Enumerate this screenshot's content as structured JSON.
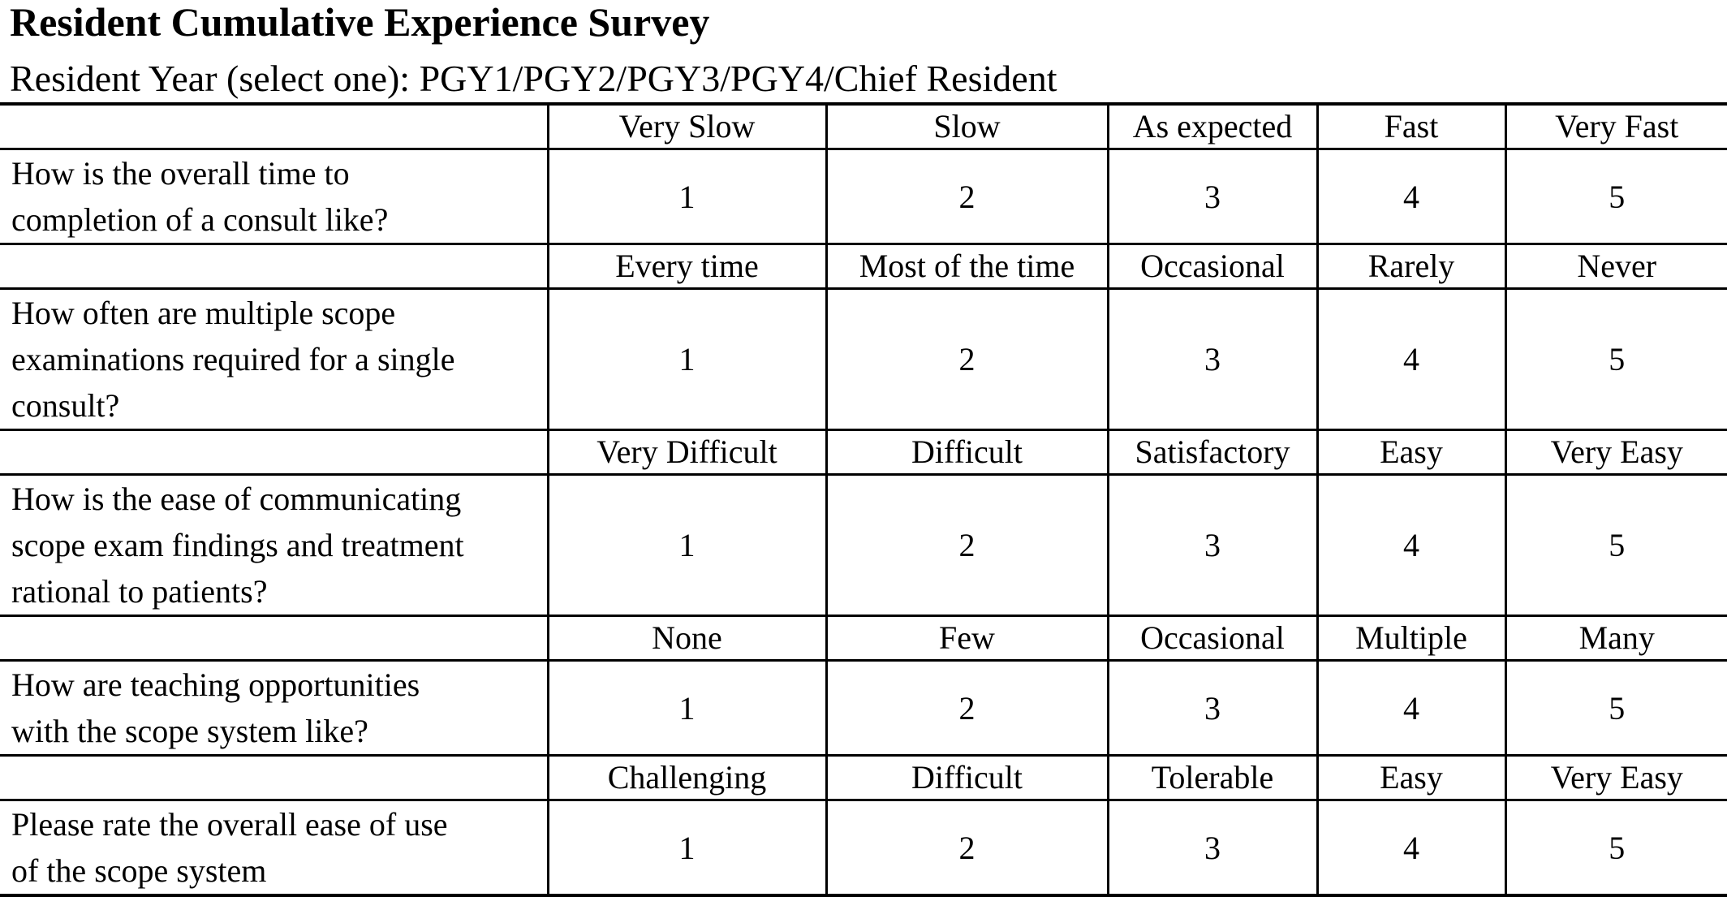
{
  "title": "Resident Cumulative Experience Survey",
  "subtitle": "Resident Year (select one): PGY1/PGY2/PGY3/PGY4/Chief Resident",
  "questions": [
    {
      "lines": [
        "How is the overall time to",
        "completion of a consult like?"
      ],
      "scale": [
        "Very Slow",
        "Slow",
        "As expected",
        "Fast",
        "Very Fast"
      ],
      "ratings": [
        "1",
        "2",
        "3",
        "4",
        "5"
      ]
    },
    {
      "lines": [
        "How often are multiple scope",
        "examinations required for a single",
        "consult?"
      ],
      "scale": [
        "Every time",
        "Most of the time",
        "Occasional",
        "Rarely",
        "Never"
      ],
      "ratings": [
        "1",
        "2",
        "3",
        "4",
        "5"
      ]
    },
    {
      "lines": [
        "How is the ease of communicating",
        "scope exam findings and treatment",
        "rational to patients?"
      ],
      "scale": [
        "Very Difficult",
        "Difficult",
        "Satisfactory",
        "Easy",
        "Very Easy"
      ],
      "ratings": [
        "1",
        "2",
        "3",
        "4",
        "5"
      ]
    },
    {
      "lines": [
        "How are teaching opportunities",
        "with the scope system like?"
      ],
      "scale": [
        "None",
        "Few",
        "Occasional",
        "Multiple",
        "Many"
      ],
      "ratings": [
        "1",
        "2",
        "3",
        "4",
        "5"
      ]
    },
    {
      "lines": [
        "Please rate the overall ease of use",
        "of the scope system"
      ],
      "scale": [
        "Challenging",
        "Difficult",
        "Tolerable",
        "Easy",
        "Very Easy"
      ],
      "ratings": [
        "1",
        "2",
        "3",
        "4",
        "5"
      ]
    }
  ]
}
